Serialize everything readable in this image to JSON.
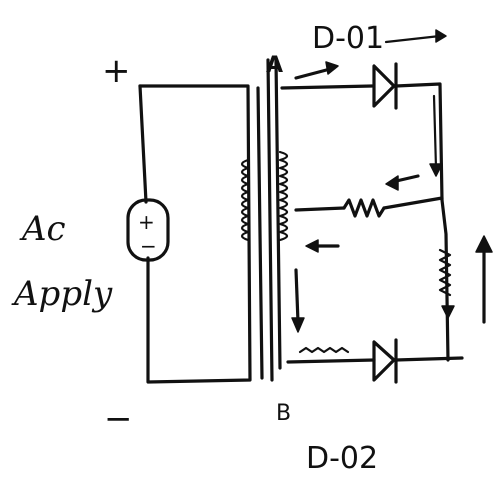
{
  "labels": {
    "plus": "+",
    "minus": "−",
    "ac_line1": "Ac",
    "ac_line2": "Apply",
    "source_plus": "+",
    "source_minus": "−",
    "node_a": "A",
    "node_b": "B",
    "diode_1": "D-01",
    "diode_2": "D-02"
  },
  "ink_color": "#111111",
  "background_color": "#ffffff"
}
